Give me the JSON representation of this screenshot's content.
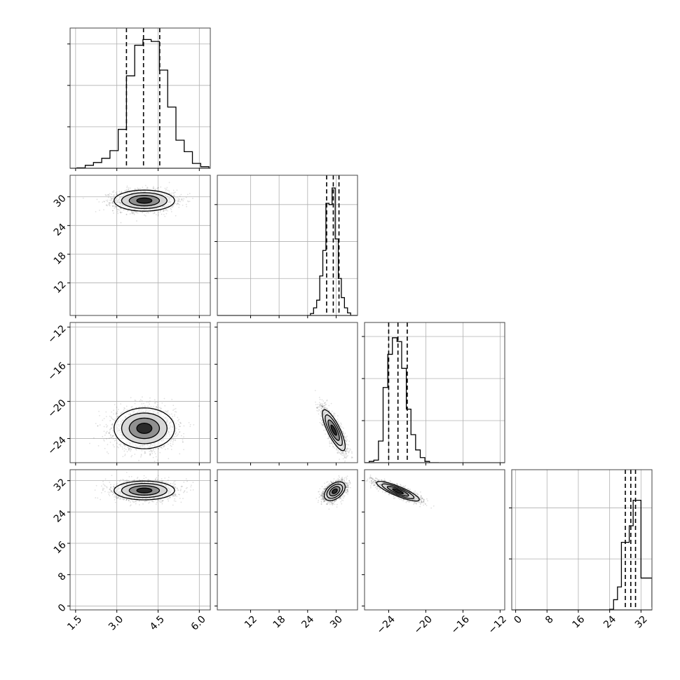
{
  "chart_data": [
    {
      "type": "histogram",
      "panel": "hist-p0",
      "xlim": [
        1.3,
        6.4
      ],
      "x_ticks": [
        1.5,
        3.0,
        4.5,
        6.0
      ],
      "x_tick_labels": [],
      "y_tick_positions": [
        0.325,
        0.65,
        0.975
      ],
      "y_tick_labels": [],
      "ylim": [
        0,
        1.1
      ],
      "bin_edges": [
        1.55,
        1.85,
        2.15,
        2.45,
        2.75,
        3.05,
        3.35,
        3.65,
        3.95,
        4.25,
        4.55,
        4.85,
        5.15,
        5.45,
        5.75,
        6.05,
        6.35
      ],
      "counts": [
        0.003,
        0.023,
        0.045,
        0.078,
        0.138,
        0.305,
        0.725,
        0.965,
        1.01,
        0.995,
        0.77,
        0.48,
        0.22,
        0.13,
        0.038,
        0.012
      ],
      "quantile_lines": [
        3.35,
        3.97,
        4.56
      ],
      "grid": true
    },
    {
      "type": "histogram",
      "panel": "hist-p1",
      "xlim": [
        5.0,
        34.5
      ],
      "x_ticks": [
        12,
        18,
        24,
        30
      ],
      "x_tick_labels": [],
      "y_tick_positions": [
        0.29,
        0.58,
        0.87
      ],
      "y_tick_labels": [],
      "ylim": [
        0,
        1.1
      ],
      "bin_edges": [
        23.95,
        24.6,
        25.25,
        25.9,
        26.55,
        27.2,
        27.85,
        28.5,
        29.15,
        29.8,
        30.45,
        31.1,
        31.75,
        32.4,
        33.05,
        33.7,
        34.35
      ],
      "counts": [
        0.0,
        0.015,
        0.06,
        0.12,
        0.31,
        0.51,
        0.88,
        0.87,
        1.0,
        0.6,
        0.29,
        0.14,
        0.06,
        0.02,
        0.0,
        0.0
      ],
      "quantile_lines": [
        28.0,
        29.4,
        30.6
      ],
      "grid": true
    },
    {
      "type": "histogram",
      "panel": "hist-p2",
      "xlim": [
        -26.6,
        -11.5
      ],
      "x_ticks": [
        -24,
        -20,
        -16,
        -12
      ],
      "x_tick_labels": [],
      "y_tick_positions": [
        0.33,
        0.66,
        0.99
      ],
      "y_tick_labels": [],
      "ylim": [
        0,
        1.1
      ],
      "bin_edges": [
        -26.6,
        -26.1,
        -25.6,
        -25.1,
        -24.6,
        -24.1,
        -23.6,
        -23.1,
        -22.6,
        -22.1,
        -21.6,
        -21.1,
        -20.6,
        -20.1,
        -19.6,
        -19.1,
        -18.6
      ],
      "counts": [
        0.0,
        0.01,
        0.02,
        0.17,
        0.59,
        0.85,
        0.98,
        0.95,
        0.74,
        0.42,
        0.22,
        0.1,
        0.04,
        0.01,
        0.0,
        0.0
      ],
      "quantile_lines": [
        -24.0,
        -23.0,
        -22.0
      ],
      "grid": true
    },
    {
      "type": "histogram",
      "panel": "hist-p3",
      "xlim": [
        -1.0,
        34.8
      ],
      "x_ticks": [
        0,
        8,
        16,
        24,
        32
      ],
      "x_tick_labels": [
        "0",
        "8",
        "16",
        "24",
        "32"
      ],
      "y_tick_positions": [
        0.4,
        0.8
      ],
      "y_tick_labels": [],
      "ylim": [
        0,
        1.1
      ],
      "bin_edges": [
        0,
        2,
        4,
        6,
        8,
        10,
        12,
        14,
        16,
        18,
        20,
        22,
        24,
        25,
        26,
        27,
        28,
        29,
        30,
        31,
        32,
        33,
        34.8
      ],
      "counts": [
        0,
        0,
        0,
        0,
        0,
        0,
        0,
        0,
        0,
        0,
        0,
        0,
        0.005,
        0.08,
        0.18,
        0.53,
        0.53,
        0.66,
        0.86,
        0.86,
        0.25,
        0.25,
        0.02
      ],
      "quantile_lines": [
        28.0,
        29.4,
        30.6
      ],
      "grid": true
    },
    {
      "type": "scatter-contour",
      "panel": "p0-vs-p1",
      "xlim": [
        1.3,
        6.4
      ],
      "ylim": [
        5.2,
        34.5
      ],
      "x_ticks": [
        1.5,
        3.0,
        4.5,
        6.0
      ],
      "x_tick_labels": [],
      "y_ticks": [
        12,
        18,
        24,
        30
      ],
      "y_tick_labels": [
        "12",
        "18",
        "24",
        "30"
      ],
      "center": [
        4.0,
        29.2
      ],
      "spread": [
        0.55,
        1.1
      ],
      "rho": 0.0,
      "grid": true
    },
    {
      "type": "scatter-contour",
      "panel": "p0-vs-p2",
      "xlim": [
        1.3,
        6.4
      ],
      "ylim": [
        -26.6,
        -11.5
      ],
      "x_ticks": [
        1.5,
        3.0,
        4.5,
        6.0
      ],
      "x_tick_labels": [],
      "y_ticks": [
        -24,
        -20,
        -16,
        -12
      ],
      "y_tick_labels": [
        "−24",
        "−20",
        "−16",
        "−12"
      ],
      "center": [
        4.0,
        -22.9
      ],
      "spread": [
        0.55,
        1.1
      ],
      "rho": 0.0,
      "grid": true
    },
    {
      "type": "scatter-contour",
      "panel": "p1-vs-p2",
      "xlim": [
        5.0,
        34.5
      ],
      "ylim": [
        -26.6,
        -11.5
      ],
      "x_ticks": [
        12,
        18,
        24,
        30
      ],
      "x_tick_labels": [],
      "y_ticks": [
        -24,
        -20,
        -16,
        -12
      ],
      "y_tick_labels": [],
      "center": [
        29.5,
        -23.1
      ],
      "spread": [
        1.2,
        1.1
      ],
      "rho": -0.8,
      "grid": false
    },
    {
      "type": "scatter-contour",
      "panel": "p0-vs-p3",
      "xlim": [
        1.3,
        6.4
      ],
      "ylim": [
        -1.0,
        34.8
      ],
      "x_ticks": [
        1.5,
        3.0,
        4.5,
        6.0
      ],
      "x_tick_labels": [
        "1.5",
        "3.0",
        "4.5",
        "6.0"
      ],
      "y_ticks": [
        0,
        8,
        16,
        24,
        32
      ],
      "y_tick_labels": [
        "0",
        "8",
        "16",
        "24",
        "32"
      ],
      "center": [
        4.0,
        29.5
      ],
      "spread": [
        0.55,
        1.2
      ],
      "rho": 0.0,
      "grid": true
    },
    {
      "type": "scatter-contour",
      "panel": "p1-vs-p3",
      "xlim": [
        5.0,
        34.5
      ],
      "ylim": [
        -1.0,
        34.8
      ],
      "x_ticks": [
        12,
        18,
        24,
        30
      ],
      "x_tick_labels": [
        "12",
        "18",
        "24",
        "30"
      ],
      "y_ticks": [
        0,
        8,
        16,
        24,
        32
      ],
      "y_tick_labels": [],
      "center": [
        29.7,
        29.3
      ],
      "spread": [
        1.1,
        1.2
      ],
      "rho": 0.45,
      "grid": false
    },
    {
      "type": "scatter-contour",
      "panel": "p2-vs-p3",
      "xlim": [
        -26.6,
        -11.5
      ],
      "ylim": [
        -1.0,
        34.8
      ],
      "x_ticks": [
        -24,
        -20,
        -16,
        -12
      ],
      "x_tick_labels": [
        "−24",
        "−20",
        "−16",
        "−12"
      ],
      "y_ticks": [
        0,
        8,
        16,
        24,
        32
      ],
      "y_tick_labels": [],
      "center": [
        -23.0,
        29.3
      ],
      "spread": [
        1.15,
        1.25
      ],
      "rho": -0.85,
      "grid": false
    }
  ]
}
